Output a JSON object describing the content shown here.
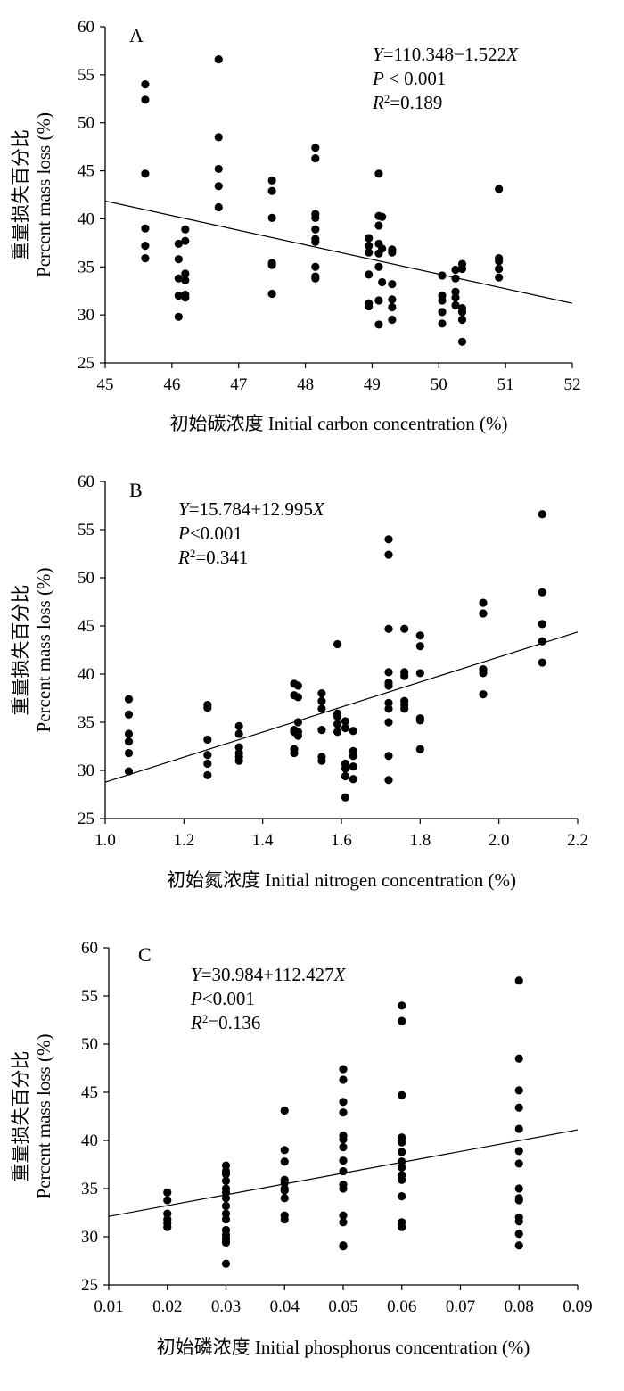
{
  "chart_data": [
    {
      "type": "scatter",
      "panel_label": "A",
      "xlabel": "初始碳浓度  Initial carbon concentration (%)",
      "ylabel_cn": "重量损失百分比",
      "ylabel_en": "Percent mass loss (%)",
      "xlim": [
        45,
        52
      ],
      "ylim": [
        25,
        60
      ],
      "xticks": [
        "45",
        "46",
        "47",
        "48",
        "49",
        "50",
        "51",
        "52"
      ],
      "yticks": [
        "25",
        "30",
        "35",
        "40",
        "45",
        "50",
        "55",
        "60"
      ],
      "equation": {
        "y": "Y",
        "rhs": "=110.348−1.522",
        "x": "X"
      },
      "p_value": {
        "p": "P",
        "rhs": " < 0.001"
      },
      "r_squared": {
        "r": "R",
        "sup": "2",
        "rhs": "=0.189"
      },
      "regression": {
        "intercept": 110.348,
        "slope": -1.522
      },
      "points": [
        [
          45.6,
          54.0
        ],
        [
          45.6,
          52.4
        ],
        [
          45.6,
          44.7
        ],
        [
          45.6,
          39.0
        ],
        [
          45.6,
          37.2
        ],
        [
          45.6,
          35.9
        ],
        [
          46.1,
          37.4
        ],
        [
          46.1,
          35.8
        ],
        [
          46.1,
          33.8
        ],
        [
          46.1,
          32.0
        ],
        [
          46.1,
          29.8
        ],
        [
          46.2,
          38.9
        ],
        [
          46.2,
          37.7
        ],
        [
          46.2,
          34.3
        ],
        [
          46.2,
          33.6
        ],
        [
          46.2,
          32.1
        ],
        [
          46.2,
          31.8
        ],
        [
          46.7,
          56.6
        ],
        [
          46.7,
          48.5
        ],
        [
          46.7,
          45.2
        ],
        [
          46.7,
          43.4
        ],
        [
          46.7,
          41.2
        ],
        [
          47.5,
          44.0
        ],
        [
          47.5,
          42.9
        ],
        [
          47.5,
          40.1
        ],
        [
          47.5,
          35.4
        ],
        [
          47.5,
          35.2
        ],
        [
          47.5,
          32.2
        ],
        [
          48.15,
          47.4
        ],
        [
          48.15,
          46.3
        ],
        [
          48.15,
          40.5
        ],
        [
          48.15,
          40.1
        ],
        [
          48.15,
          38.9
        ],
        [
          48.15,
          37.9
        ],
        [
          48.15,
          37.6
        ],
        [
          48.15,
          35.0
        ],
        [
          48.15,
          34.0
        ],
        [
          48.15,
          33.8
        ],
        [
          48.95,
          38.0
        ],
        [
          48.95,
          37.2
        ],
        [
          48.95,
          36.5
        ],
        [
          48.95,
          34.2
        ],
        [
          48.95,
          31.2
        ],
        [
          48.95,
          30.9
        ],
        [
          49.1,
          44.7
        ],
        [
          49.1,
          40.3
        ],
        [
          49.1,
          39.3
        ],
        [
          49.1,
          37.4
        ],
        [
          49.1,
          36.4
        ],
        [
          49.1,
          35.0
        ],
        [
          49.1,
          31.5
        ],
        [
          49.1,
          29.0
        ],
        [
          49.15,
          40.2
        ],
        [
          49.15,
          36.9
        ],
        [
          49.15,
          33.4
        ],
        [
          49.3,
          36.8
        ],
        [
          49.3,
          36.5
        ],
        [
          49.3,
          33.2
        ],
        [
          49.3,
          31.6
        ],
        [
          49.3,
          30.8
        ],
        [
          49.3,
          29.5
        ],
        [
          50.05,
          34.1
        ],
        [
          50.05,
          32.0
        ],
        [
          50.05,
          31.5
        ],
        [
          50.05,
          30.3
        ],
        [
          50.05,
          29.1
        ],
        [
          50.25,
          34.7
        ],
        [
          50.25,
          33.8
        ],
        [
          50.25,
          32.4
        ],
        [
          50.25,
          31.8
        ],
        [
          50.25,
          31.0
        ],
        [
          50.35,
          35.3
        ],
        [
          50.35,
          34.8
        ],
        [
          50.35,
          30.7
        ],
        [
          50.35,
          30.3
        ],
        [
          50.35,
          29.5
        ],
        [
          50.35,
          27.2
        ],
        [
          50.9,
          43.1
        ],
        [
          50.9,
          35.9
        ],
        [
          50.9,
          35.6
        ],
        [
          50.9,
          34.8
        ],
        [
          50.9,
          33.9
        ]
      ]
    },
    {
      "type": "scatter",
      "panel_label": "B",
      "xlabel": "初始氮浓度  Initial nitrogen concentration (%)",
      "ylabel_cn": "重量损失百分比",
      "ylabel_en": "Percent mass loss  (%)",
      "xlim": [
        1.0,
        2.2
      ],
      "ylim": [
        25,
        60
      ],
      "xticks": [
        "1.0",
        "1.2",
        "1.4",
        "1.6",
        "1.8",
        "2.0",
        "2.2"
      ],
      "yticks": [
        "25",
        "30",
        "35",
        "40",
        "45",
        "50",
        "55",
        "60"
      ],
      "equation": {
        "y": "Y",
        "rhs": "=15.784+12.995",
        "x": "X"
      },
      "p_value": {
        "p": "P",
        "rhs": "<0.001"
      },
      "r_squared": {
        "r": "R",
        "sup": "2",
        "rhs": "=0.341"
      },
      "regression": {
        "intercept": 15.784,
        "slope": 12.995
      },
      "points": [
        [
          1.06,
          37.4
        ],
        [
          1.06,
          35.8
        ],
        [
          1.06,
          33.8
        ],
        [
          1.06,
          33.0
        ],
        [
          1.06,
          31.8
        ],
        [
          1.06,
          29.9
        ],
        [
          1.26,
          36.8
        ],
        [
          1.26,
          36.5
        ],
        [
          1.26,
          33.2
        ],
        [
          1.26,
          31.6
        ],
        [
          1.26,
          30.7
        ],
        [
          1.26,
          29.5
        ],
        [
          1.34,
          34.6
        ],
        [
          1.34,
          33.8
        ],
        [
          1.34,
          32.4
        ],
        [
          1.34,
          31.8
        ],
        [
          1.34,
          31.4
        ],
        [
          1.34,
          31.0
        ],
        [
          1.48,
          39.0
        ],
        [
          1.48,
          37.8
        ],
        [
          1.48,
          34.2
        ],
        [
          1.48,
          34.0
        ],
        [
          1.48,
          32.2
        ],
        [
          1.48,
          31.8
        ],
        [
          1.49,
          38.8
        ],
        [
          1.49,
          37.6
        ],
        [
          1.49,
          35.0
        ],
        [
          1.49,
          34.0
        ],
        [
          1.49,
          33.6
        ],
        [
          1.55,
          38.0
        ],
        [
          1.55,
          37.2
        ],
        [
          1.55,
          36.4
        ],
        [
          1.55,
          34.2
        ],
        [
          1.55,
          31.4
        ],
        [
          1.55,
          31.0
        ],
        [
          1.59,
          43.1
        ],
        [
          1.59,
          35.9
        ],
        [
          1.59,
          35.6
        ],
        [
          1.59,
          34.8
        ],
        [
          1.59,
          34.0
        ],
        [
          1.61,
          35.1
        ],
        [
          1.61,
          34.4
        ],
        [
          1.61,
          30.7
        ],
        [
          1.61,
          30.2
        ],
        [
          1.61,
          29.4
        ],
        [
          1.61,
          27.2
        ],
        [
          1.63,
          34.1
        ],
        [
          1.63,
          32.0
        ],
        [
          1.63,
          31.5
        ],
        [
          1.63,
          30.4
        ],
        [
          1.63,
          29.1
        ],
        [
          1.72,
          54.0
        ],
        [
          1.72,
          52.4
        ],
        [
          1.72,
          44.7
        ],
        [
          1.72,
          40.2
        ],
        [
          1.72,
          39.1
        ],
        [
          1.72,
          38.8
        ],
        [
          1.72,
          37.0
        ],
        [
          1.72,
          36.4
        ],
        [
          1.72,
          35.0
        ],
        [
          1.72,
          31.5
        ],
        [
          1.72,
          29.0
        ],
        [
          1.76,
          44.7
        ],
        [
          1.76,
          40.2
        ],
        [
          1.76,
          39.8
        ],
        [
          1.76,
          37.2
        ],
        [
          1.76,
          36.8
        ],
        [
          1.76,
          36.4
        ],
        [
          1.8,
          44.0
        ],
        [
          1.8,
          42.9
        ],
        [
          1.8,
          40.1
        ],
        [
          1.8,
          35.4
        ],
        [
          1.8,
          35.2
        ],
        [
          1.8,
          32.2
        ],
        [
          1.96,
          47.4
        ],
        [
          1.96,
          46.3
        ],
        [
          1.96,
          40.5
        ],
        [
          1.96,
          40.1
        ],
        [
          1.96,
          37.9
        ],
        [
          2.11,
          56.6
        ],
        [
          2.11,
          48.5
        ],
        [
          2.11,
          45.2
        ],
        [
          2.11,
          43.4
        ],
        [
          2.11,
          41.2
        ]
      ]
    },
    {
      "type": "scatter",
      "panel_label": "C",
      "xlabel": "初始磷浓度  Initial phosphorus concentration (%)",
      "ylabel_cn": "重量损失百分比",
      "ylabel_en": "Percent mass loss (%)",
      "xlim": [
        0.01,
        0.09
      ],
      "ylim": [
        25,
        60
      ],
      "xticks": [
        "0.01",
        "0.02",
        "0.03",
        "0.04",
        "0.05",
        "0.06",
        "0.07",
        "0.08",
        "0.09"
      ],
      "yticks": [
        "25",
        "30",
        "35",
        "40",
        "45",
        "50",
        "55",
        "60"
      ],
      "equation": {
        "y": "Y",
        "rhs": "=30.984+112.427",
        "x": "X"
      },
      "p_value": {
        "p": "P",
        "rhs": "<0.001"
      },
      "r_squared": {
        "r": "R",
        "sup": "2",
        "rhs": "=0.136"
      },
      "regression": {
        "intercept": 30.984,
        "slope": 112.427
      },
      "points": [
        [
          0.02,
          34.6
        ],
        [
          0.02,
          33.8
        ],
        [
          0.02,
          32.4
        ],
        [
          0.02,
          31.8
        ],
        [
          0.02,
          31.4
        ],
        [
          0.02,
          31.0
        ],
        [
          0.03,
          37.4
        ],
        [
          0.03,
          36.8
        ],
        [
          0.03,
          36.5
        ],
        [
          0.03,
          35.8
        ],
        [
          0.03,
          35.0
        ],
        [
          0.03,
          34.6
        ],
        [
          0.03,
          34.0
        ],
        [
          0.03,
          33.2
        ],
        [
          0.03,
          32.4
        ],
        [
          0.03,
          31.8
        ],
        [
          0.03,
          30.7
        ],
        [
          0.03,
          30.2
        ],
        [
          0.03,
          29.8
        ],
        [
          0.03,
          29.5
        ],
        [
          0.03,
          29.4
        ],
        [
          0.03,
          27.2
        ],
        [
          0.04,
          43.1
        ],
        [
          0.04,
          39.0
        ],
        [
          0.04,
          37.8
        ],
        [
          0.04,
          35.9
        ],
        [
          0.04,
          35.6
        ],
        [
          0.04,
          35.0
        ],
        [
          0.04,
          34.8
        ],
        [
          0.04,
          34.0
        ],
        [
          0.04,
          32.2
        ],
        [
          0.04,
          31.8
        ],
        [
          0.05,
          47.4
        ],
        [
          0.05,
          46.3
        ],
        [
          0.05,
          44.0
        ],
        [
          0.05,
          42.9
        ],
        [
          0.05,
          40.5
        ],
        [
          0.05,
          40.1
        ],
        [
          0.05,
          39.3
        ],
        [
          0.05,
          37.9
        ],
        [
          0.05,
          36.8
        ],
        [
          0.05,
          35.4
        ],
        [
          0.05,
          35.0
        ],
        [
          0.05,
          32.2
        ],
        [
          0.05,
          31.5
        ],
        [
          0.05,
          29.1
        ],
        [
          0.05,
          29.0
        ],
        [
          0.06,
          54.0
        ],
        [
          0.06,
          52.4
        ],
        [
          0.06,
          44.7
        ],
        [
          0.06,
          40.3
        ],
        [
          0.06,
          39.8
        ],
        [
          0.06,
          38.8
        ],
        [
          0.06,
          37.8
        ],
        [
          0.06,
          37.2
        ],
        [
          0.06,
          36.4
        ],
        [
          0.06,
          35.9
        ],
        [
          0.06,
          34.2
        ],
        [
          0.06,
          31.5
        ],
        [
          0.06,
          31.0
        ],
        [
          0.08,
          56.6
        ],
        [
          0.08,
          48.5
        ],
        [
          0.08,
          45.2
        ],
        [
          0.08,
          43.4
        ],
        [
          0.08,
          41.2
        ],
        [
          0.08,
          38.9
        ],
        [
          0.08,
          37.6
        ],
        [
          0.08,
          35.0
        ],
        [
          0.08,
          34.0
        ],
        [
          0.08,
          33.8
        ],
        [
          0.08,
          32.0
        ],
        [
          0.08,
          31.6
        ],
        [
          0.08,
          30.3
        ],
        [
          0.08,
          29.1
        ]
      ]
    }
  ]
}
